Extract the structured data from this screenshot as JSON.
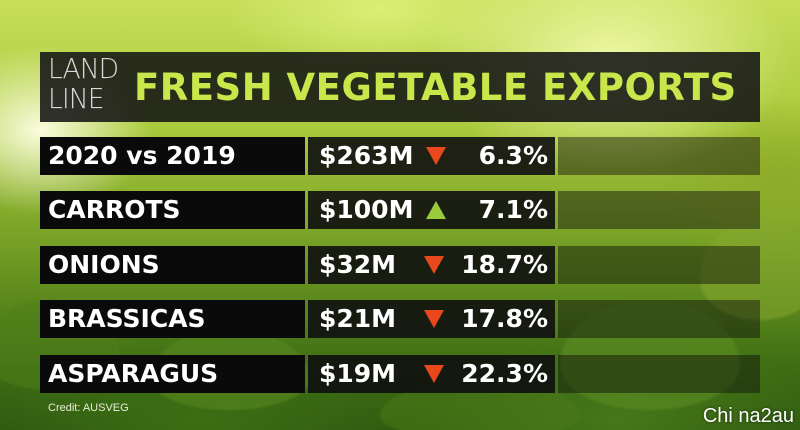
{
  "logo": {
    "line1": "LAND",
    "line2": "LINE"
  },
  "title": "FRESH VEGETABLE EXPORTS",
  "rows": [
    {
      "name": "2020 vs 2019",
      "value": "$263M",
      "direction": "down",
      "change": "6.3%"
    },
    {
      "name": "CARROTS",
      "value": "$100M",
      "direction": "up",
      "change": "7.1%"
    },
    {
      "name": "ONIONS",
      "value": "$32M",
      "direction": "down",
      "change": "18.7%"
    },
    {
      "name": "BRASSICAS",
      "value": "$21M",
      "direction": "down",
      "change": "17.8%"
    },
    {
      "name": "ASPARAGUS",
      "value": "$19M",
      "direction": "down",
      "change": "22.3%"
    }
  ],
  "credit": "Credit: AUSVEG",
  "watermark": "Chi na2au",
  "colors": {
    "title": "#c9e64a",
    "up": "#9acb3c",
    "down": "#e8481c"
  }
}
